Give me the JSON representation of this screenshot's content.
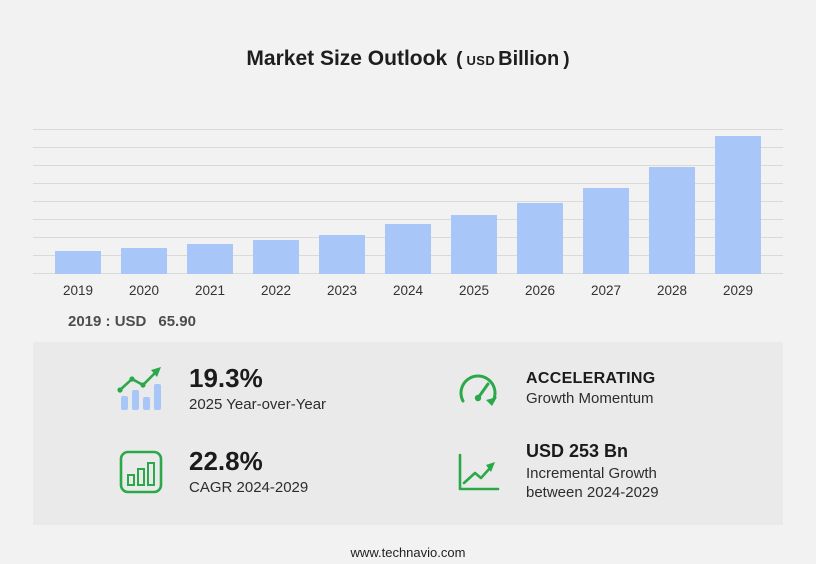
{
  "title": {
    "main": "Market Size Outlook",
    "open_paren": "(",
    "currency": "USD",
    "unit": "Billion",
    "close_paren": ")"
  },
  "chart_data": {
    "type": "bar",
    "title": "Market Size Outlook (USD Billion)",
    "categories": [
      "2019",
      "2020",
      "2021",
      "2022",
      "2023",
      "2024",
      "2025",
      "2026",
      "2027",
      "2028",
      "2029"
    ],
    "values": [
      65.9,
      74,
      84,
      96,
      112,
      141,
      168,
      201,
      245,
      305,
      394
    ],
    "xlabel": "",
    "ylabel": "",
    "ylim": [
      0,
      410
    ],
    "grid": true,
    "legend": false,
    "bar_color": "#a9c6f8"
  },
  "annotation": {
    "label": "2019 : USD",
    "value": "65.90"
  },
  "stats": [
    {
      "icon": "growth-bars-icon",
      "value": "19.3%",
      "label": "2025 Year-over-Year"
    },
    {
      "icon": "speedometer-icon",
      "value": "ACCELERATING",
      "label": "Growth Momentum"
    },
    {
      "icon": "framed-bar-chart-icon",
      "value": "22.8%",
      "label": "CAGR 2024-2029"
    },
    {
      "icon": "step-growth-icon",
      "value": "USD 253 Bn",
      "label": "Incremental Growth between 2024-2029"
    }
  ],
  "footer": {
    "url": "www.technavio.com"
  },
  "colors": {
    "page_bg": "#f2f2f2",
    "panel_bg": "#eaeaea",
    "bar_blue": "#a9c6f8",
    "accent_green": "#2aa84a",
    "gridline": "#d9d9d9"
  }
}
